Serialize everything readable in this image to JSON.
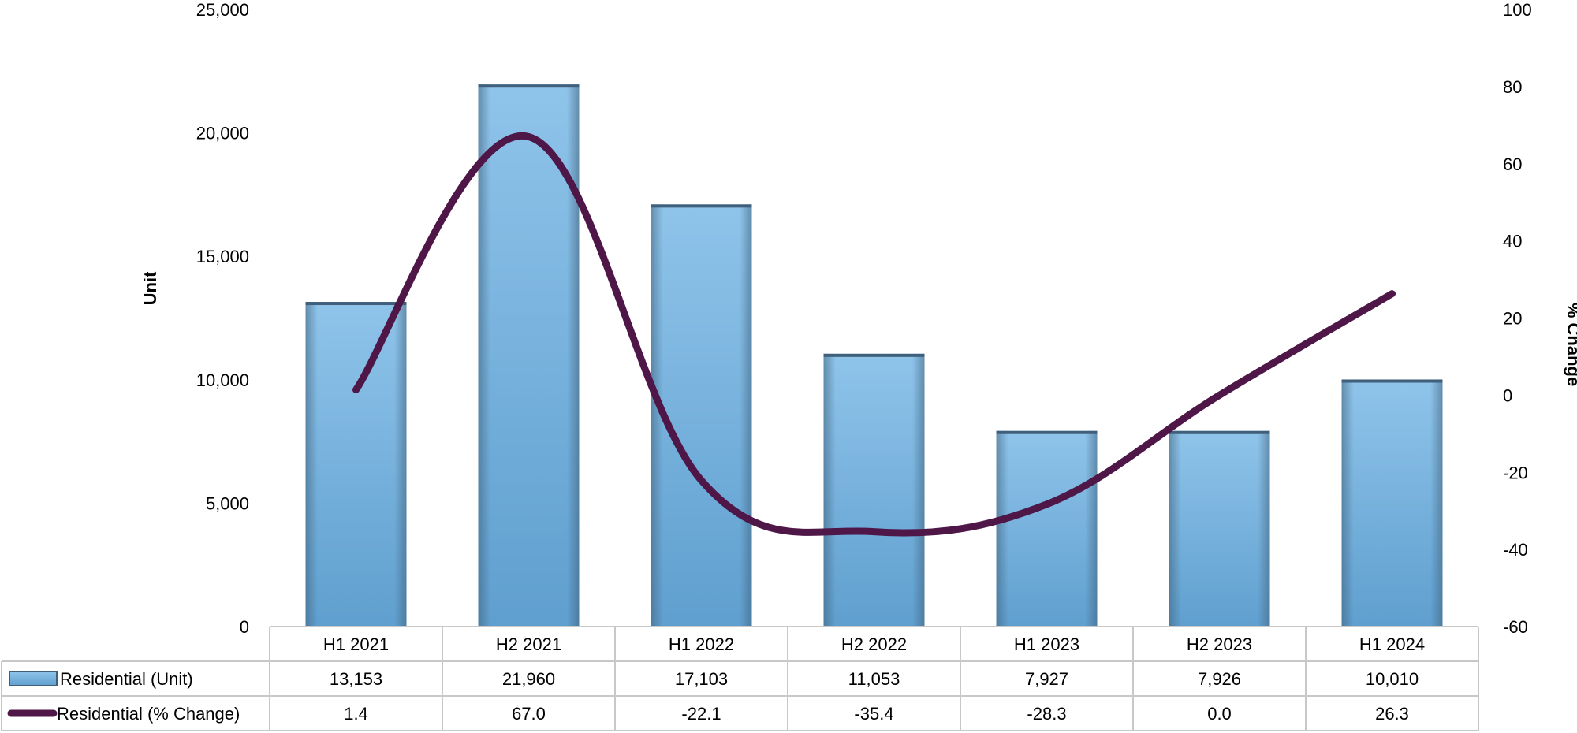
{
  "chart_data": {
    "type": "bar",
    "categories": [
      "H1 2021",
      "H2 2021",
      "H1 2022",
      "H2 2022",
      "H1 2023",
      "H2 2023",
      "H1 2024"
    ],
    "series": [
      {
        "name": "Residential (Unit)",
        "type": "bar",
        "axis": "left",
        "values": [
          13153,
          21960,
          17103,
          11053,
          7927,
          7926,
          10010
        ],
        "labels": [
          "13,153",
          "21,960",
          "17,103",
          "11,053",
          "7,927",
          "7,926",
          "10,010"
        ],
        "color": "#7fb6e0"
      },
      {
        "name": "Residential (% Change)",
        "type": "line",
        "axis": "right",
        "values": [
          1.4,
          67.0,
          -22.1,
          -35.4,
          -28.3,
          0.0,
          26.3
        ],
        "labels": [
          "1.4",
          "67.0",
          "-22.1",
          "-35.4",
          "-28.3",
          "0.0",
          "26.3"
        ],
        "color": "#4f1648"
      }
    ],
    "ylabel": "Unit",
    "y2label": "% Change",
    "ylim": [
      0,
      25000
    ],
    "y2lim": [
      -60,
      100
    ],
    "yticks": [
      "0",
      "5,000",
      "10,000",
      "15,000",
      "20,000",
      "25,000"
    ],
    "y2ticks": [
      "-60",
      "-40",
      "-20",
      "0",
      "20",
      "40",
      "60",
      "80",
      "100"
    ],
    "data_table": true,
    "legend": "table",
    "grid": false
  }
}
